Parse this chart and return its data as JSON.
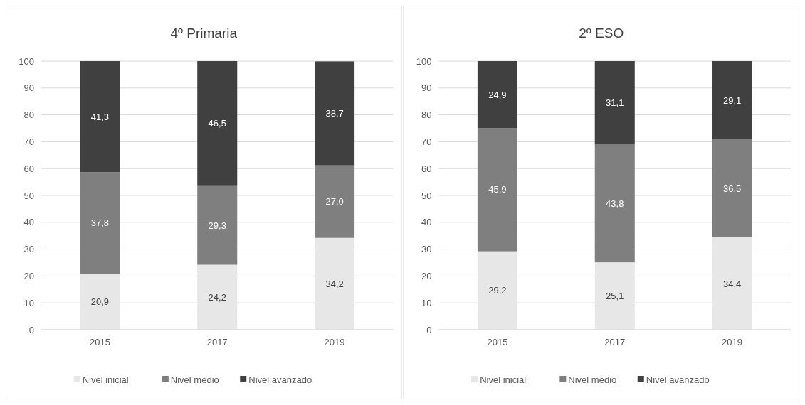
{
  "chart_data": [
    {
      "type": "bar",
      "title": "4º Primaria",
      "categories": [
        "2015",
        "2017",
        "2019"
      ],
      "stacked": true,
      "ylim": [
        0,
        100
      ],
      "yticks": [
        0,
        10,
        20,
        30,
        40,
        50,
        60,
        70,
        80,
        90,
        100
      ],
      "grid": "y",
      "legend": "bottom",
      "series": [
        {
          "name": "Nivel inicial",
          "color": "#e7e7e7",
          "values": [
            20.9,
            24.2,
            34.2
          ],
          "value_labels": [
            "20,9",
            "24,2",
            "34,2"
          ]
        },
        {
          "name": "Nivel medio",
          "color": "#7f7f7f",
          "values": [
            37.8,
            29.3,
            27.0
          ],
          "value_labels": [
            "37,8",
            "29,3",
            "27,0"
          ]
        },
        {
          "name": "Nivel avanzado",
          "color": "#404040",
          "values": [
            41.3,
            46.5,
            38.7
          ],
          "value_labels": [
            "41,3",
            "46,5",
            "38,7"
          ]
        }
      ]
    },
    {
      "type": "bar",
      "title": "2º ESO",
      "categories": [
        "2015",
        "2017",
        "2019"
      ],
      "stacked": true,
      "ylim": [
        0,
        100
      ],
      "yticks": [
        0,
        10,
        20,
        30,
        40,
        50,
        60,
        70,
        80,
        90,
        100
      ],
      "grid": "y",
      "legend": "bottom",
      "series": [
        {
          "name": "Nivel inicial",
          "color": "#e7e7e7",
          "values": [
            29.2,
            25.1,
            34.4
          ],
          "value_labels": [
            "29,2",
            "25,1",
            "34,4"
          ]
        },
        {
          "name": "Nivel medio",
          "color": "#7f7f7f",
          "values": [
            45.9,
            43.8,
            36.5
          ],
          "value_labels": [
            "45,9",
            "43,8",
            "36,5"
          ]
        },
        {
          "name": "Nivel avanzado",
          "color": "#404040",
          "values": [
            24.9,
            31.1,
            29.1
          ],
          "value_labels": [
            "24,9",
            "31,1",
            "29,1"
          ]
        }
      ]
    }
  ]
}
